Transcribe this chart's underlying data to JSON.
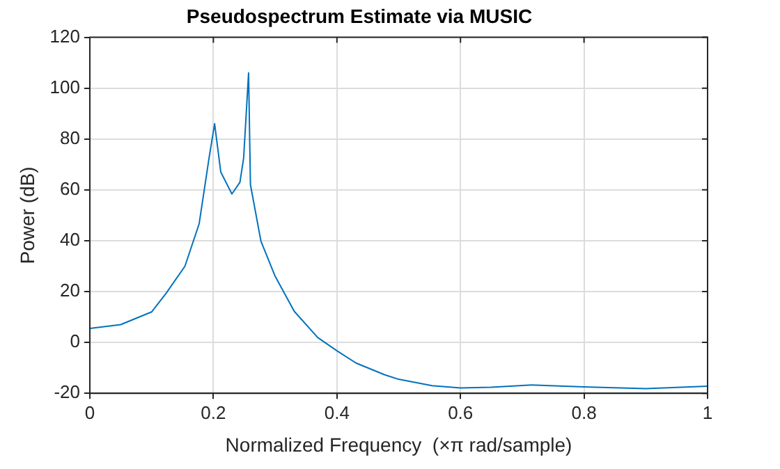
{
  "chart_data": {
    "type": "line",
    "title": "Pseudospectrum Estimate via MUSIC",
    "xlabel": "Normalized Frequency  (×π rad/sample)",
    "ylabel": "Power (dB)",
    "series": [
      {
        "color": "#0072bd",
        "x": [
          0,
          0.05,
          0.1,
          0.124,
          0.154,
          0.177,
          0.193,
          0.202,
          0.212,
          0.23,
          0.243,
          0.249,
          0.257,
          0.26,
          0.277,
          0.3,
          0.331,
          0.369,
          0.4,
          0.431,
          0.477,
          0.5,
          0.554,
          0.6,
          0.65,
          0.715,
          0.8,
          0.9,
          1
        ],
        "values": [
          5.5,
          7,
          12,
          19.5,
          30,
          46.7,
          72.5,
          86,
          67,
          58.4,
          63,
          72.5,
          106,
          62,
          39.8,
          26,
          12.2,
          1.9,
          -3.3,
          -8.1,
          -12.7,
          -14.5,
          -17,
          -17.9,
          -17.6,
          -16.7,
          -17.5,
          -18.2,
          -17.2
        ]
      }
    ],
    "xlim": [
      0,
      1
    ],
    "xticks": [
      0,
      0.2,
      0.4,
      0.6,
      0.8,
      1
    ],
    "ylim": [
      -20,
      120
    ],
    "yticks": [
      -20,
      0,
      20,
      40,
      60,
      80,
      100,
      120
    ],
    "grid": true,
    "legend": false
  }
}
